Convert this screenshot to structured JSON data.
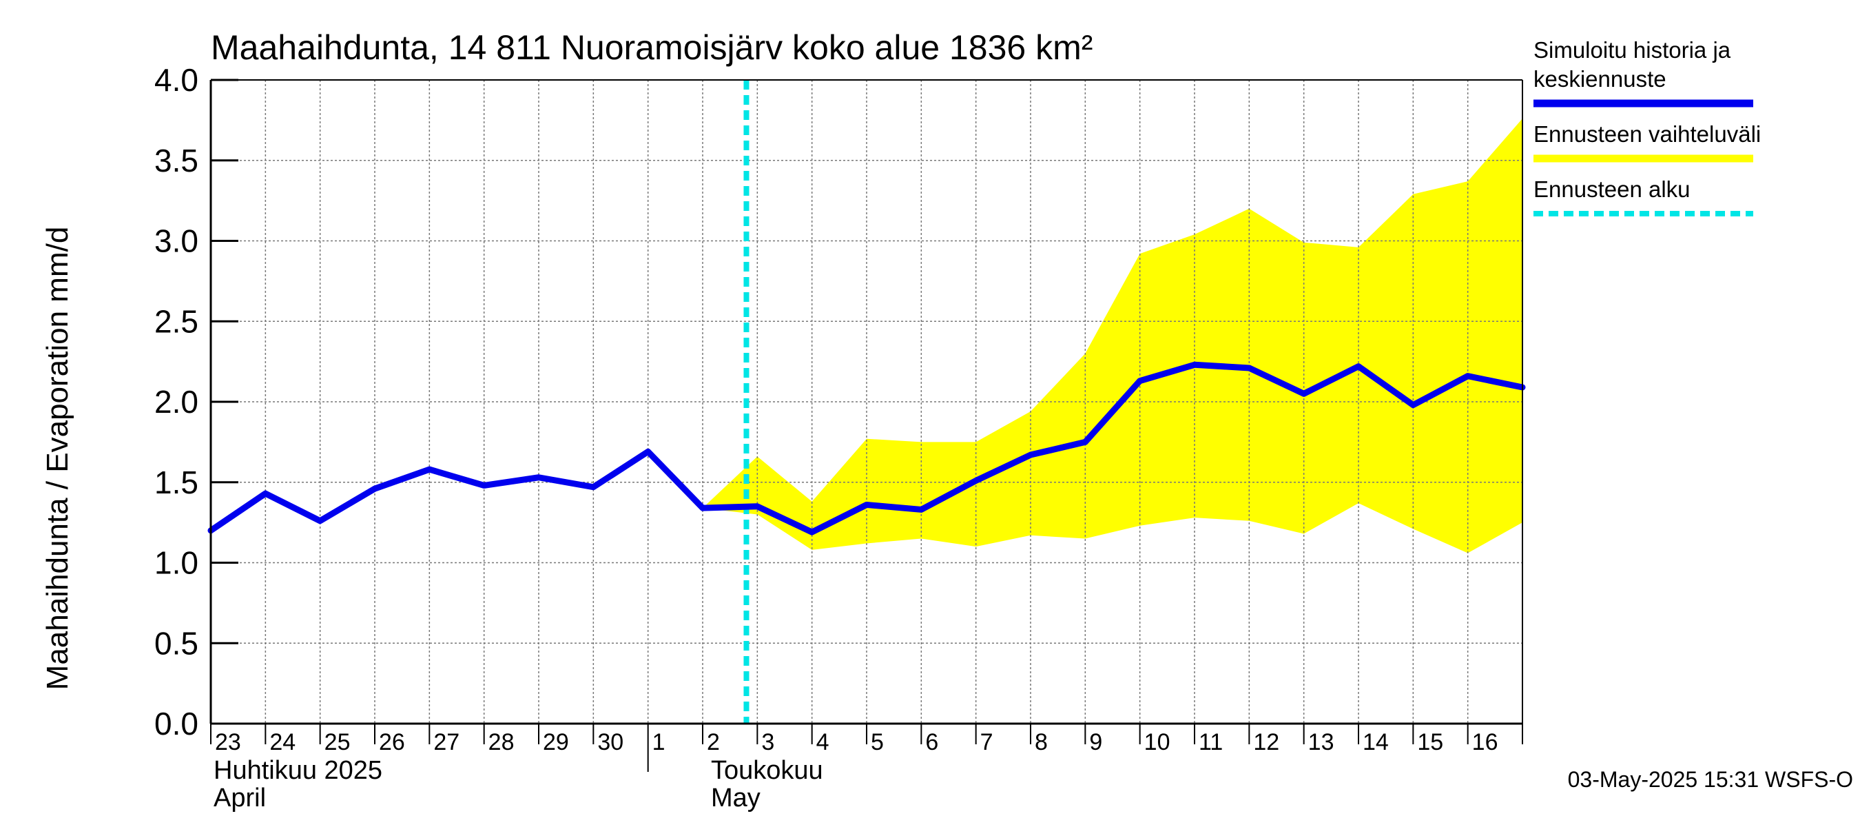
{
  "chart_data": {
    "type": "line",
    "title": "Maahaihdunta, 14 811 Nuoramoisjärv koko alue 1836 km²",
    "ylabel": "Maahaihdunta / Evaporation   mm/d",
    "ylim": [
      0.0,
      4.0
    ],
    "yticks": [
      "0.0",
      "0.5",
      "1.0",
      "1.5",
      "2.0",
      "2.5",
      "3.0",
      "3.5",
      "4.0"
    ],
    "x_labels": [
      "23",
      "24",
      "25",
      "26",
      "27",
      "28",
      "29",
      "30",
      "1",
      "2",
      "3",
      "4",
      "5",
      "6",
      "7",
      "8",
      "9",
      "10",
      "11",
      "12",
      "13",
      "14",
      "15",
      "16"
    ],
    "months": [
      {
        "fi": "Huhtikuu  2025",
        "en": "April"
      },
      {
        "fi": "Toukokuu",
        "en": "May"
      }
    ],
    "forecast_start_index": 9.8,
    "series": [
      {
        "name": "Simuloitu historia ja keskiennuste",
        "color": "#0000ee",
        "x": [
          0,
          1,
          2,
          3,
          4,
          5,
          6,
          7,
          8,
          9,
          10,
          11,
          12,
          13,
          14,
          15,
          16,
          17,
          18,
          19,
          20,
          21,
          22,
          23,
          24
        ],
        "values": [
          1.2,
          1.43,
          1.26,
          1.46,
          1.58,
          1.48,
          1.53,
          1.47,
          1.69,
          1.34,
          1.35,
          1.19,
          1.36,
          1.33,
          1.51,
          1.67,
          1.75,
          2.13,
          2.23,
          2.21,
          2.05,
          2.22,
          1.98,
          2.16,
          2.09
        ]
      },
      {
        "name": "Ennusteen vaihteluväli",
        "color": "#ffff00",
        "type": "band",
        "x": [
          9,
          10,
          11,
          12,
          13,
          14,
          15,
          16,
          17,
          18,
          19,
          20,
          21,
          22,
          23,
          24
        ],
        "upper": [
          1.34,
          1.66,
          1.38,
          1.77,
          1.75,
          1.75,
          1.94,
          2.3,
          2.92,
          3.04,
          3.2,
          2.99,
          2.96,
          3.29,
          3.37,
          3.76
        ],
        "lower": [
          1.34,
          1.3,
          1.08,
          1.12,
          1.15,
          1.1,
          1.17,
          1.15,
          1.23,
          1.28,
          1.26,
          1.18,
          1.37,
          1.21,
          1.06,
          1.25
        ]
      }
    ],
    "legend": [
      {
        "label_lines": [
          "Simuloitu historia ja",
          "keskiennuste"
        ],
        "color": "#0000ee",
        "style": "solid"
      },
      {
        "label_lines": [
          "Ennusteen vaihteluväli"
        ],
        "color": "#ffff00",
        "style": "solid"
      },
      {
        "label_lines": [
          "Ennusteen alku"
        ],
        "color": "#00e5e5",
        "style": "dashed"
      }
    ],
    "legend_position": "right",
    "grid": true
  },
  "footer": {
    "timestamp": "03-May-2025 15:31 WSFS-O"
  }
}
